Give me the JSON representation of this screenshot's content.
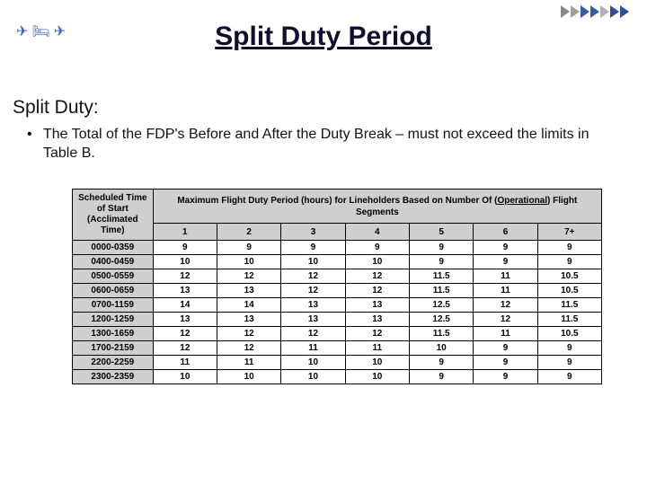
{
  "title": "Split Duty Period",
  "section_heading": "Split Duty:",
  "bullet_text": "The Total of the FDP's Before and After the Duty Break – must not exceed the limits in Table B.",
  "header_icons": {
    "plane": "✈",
    "bed": "🛏",
    "plane2": "✈"
  },
  "chevron_colors": [
    "#8a8a8a",
    "#a0a0a0",
    "#3b5aa6",
    "#3b5aa6",
    "#b0b0b0",
    "#2f4e9a",
    "#2f4e9a"
  ],
  "table": {
    "row_header_label": "Scheduled Time of Start (Acclimated Time)",
    "span_header_prefix": "Maximum Flight Duty Period (hours) for Lineholders Based on Number Of (",
    "span_header_underlined": "Operational",
    "span_header_suffix": ") Flight Segments",
    "segment_labels": [
      "1",
      "2",
      "3",
      "4",
      "5",
      "6",
      "7+"
    ],
    "rows": [
      {
        "time": "0000-0359",
        "vals": [
          "9",
          "9",
          "9",
          "9",
          "9",
          "9",
          "9"
        ]
      },
      {
        "time": "0400-0459",
        "vals": [
          "10",
          "10",
          "10",
          "10",
          "9",
          "9",
          "9"
        ]
      },
      {
        "time": "0500-0559",
        "vals": [
          "12",
          "12",
          "12",
          "12",
          "11.5",
          "11",
          "10.5"
        ]
      },
      {
        "time": "0600-0659",
        "vals": [
          "13",
          "13",
          "12",
          "12",
          "11.5",
          "11",
          "10.5"
        ]
      },
      {
        "time": "0700-1159",
        "vals": [
          "14",
          "14",
          "13",
          "13",
          "12.5",
          "12",
          "11.5"
        ]
      },
      {
        "time": "1200-1259",
        "vals": [
          "13",
          "13",
          "13",
          "13",
          "12.5",
          "12",
          "11.5"
        ]
      },
      {
        "time": "1300-1659",
        "vals": [
          "12",
          "12",
          "12",
          "12",
          "11.5",
          "11",
          "10.5"
        ]
      },
      {
        "time": "1700-2159",
        "vals": [
          "12",
          "12",
          "11",
          "11",
          "10",
          "9",
          "9"
        ]
      },
      {
        "time": "2200-2259",
        "vals": [
          "11",
          "11",
          "10",
          "10",
          "9",
          "9",
          "9"
        ]
      },
      {
        "time": "2300-2359",
        "vals": [
          "10",
          "10",
          "10",
          "10",
          "9",
          "9",
          "9"
        ]
      }
    ]
  }
}
